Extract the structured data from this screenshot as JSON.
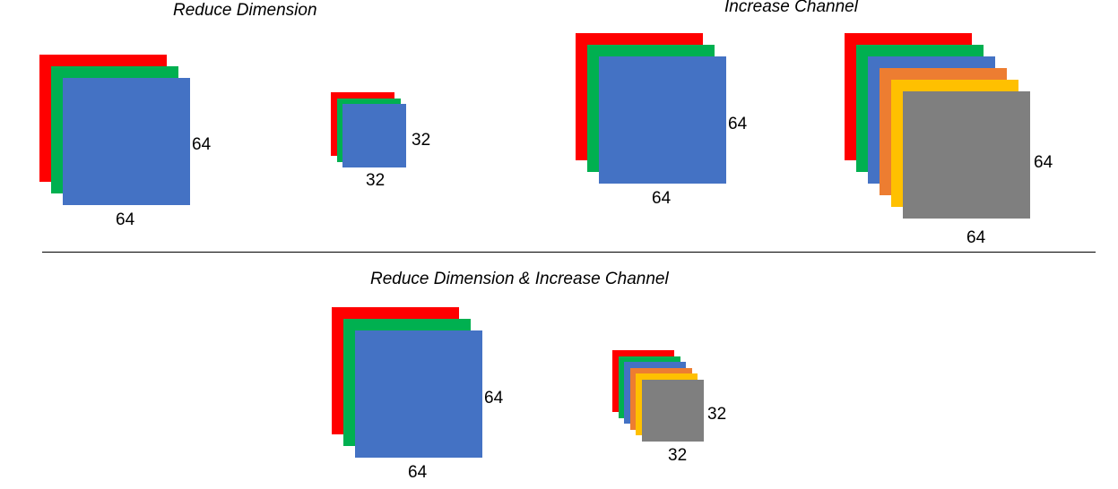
{
  "titles": {
    "reduce_dimension": "Reduce Dimension",
    "increase_channel": "Increase Channel",
    "reduce_and_increase": "Reduce Dimension & Increase Channel"
  },
  "colors": {
    "red": "#ff0000",
    "green": "#00b050",
    "blue": "#4472c4",
    "orange": "#ed7d31",
    "yellow": "#ffc000",
    "gray": "#7f7f7f"
  },
  "stacks": [
    {
      "id": "reduce-dim-input",
      "channels": [
        "red",
        "green",
        "blue"
      ],
      "height_label": "64",
      "width_label": "64"
    },
    {
      "id": "reduce-dim-output",
      "channels": [
        "red",
        "green",
        "blue"
      ],
      "height_label": "32",
      "width_label": "32"
    },
    {
      "id": "increase-channel-input",
      "channels": [
        "red",
        "green",
        "blue"
      ],
      "height_label": "64",
      "width_label": "64"
    },
    {
      "id": "increase-channel-output",
      "channels": [
        "red",
        "green",
        "blue",
        "orange",
        "yellow",
        "gray"
      ],
      "height_label": "64",
      "width_label": "64"
    },
    {
      "id": "combined-input",
      "channels": [
        "red",
        "green",
        "blue"
      ],
      "height_label": "64",
      "width_label": "64"
    },
    {
      "id": "combined-output",
      "channels": [
        "red",
        "green",
        "blue",
        "orange",
        "yellow",
        "gray"
      ],
      "height_label": "32",
      "width_label": "32"
    }
  ]
}
